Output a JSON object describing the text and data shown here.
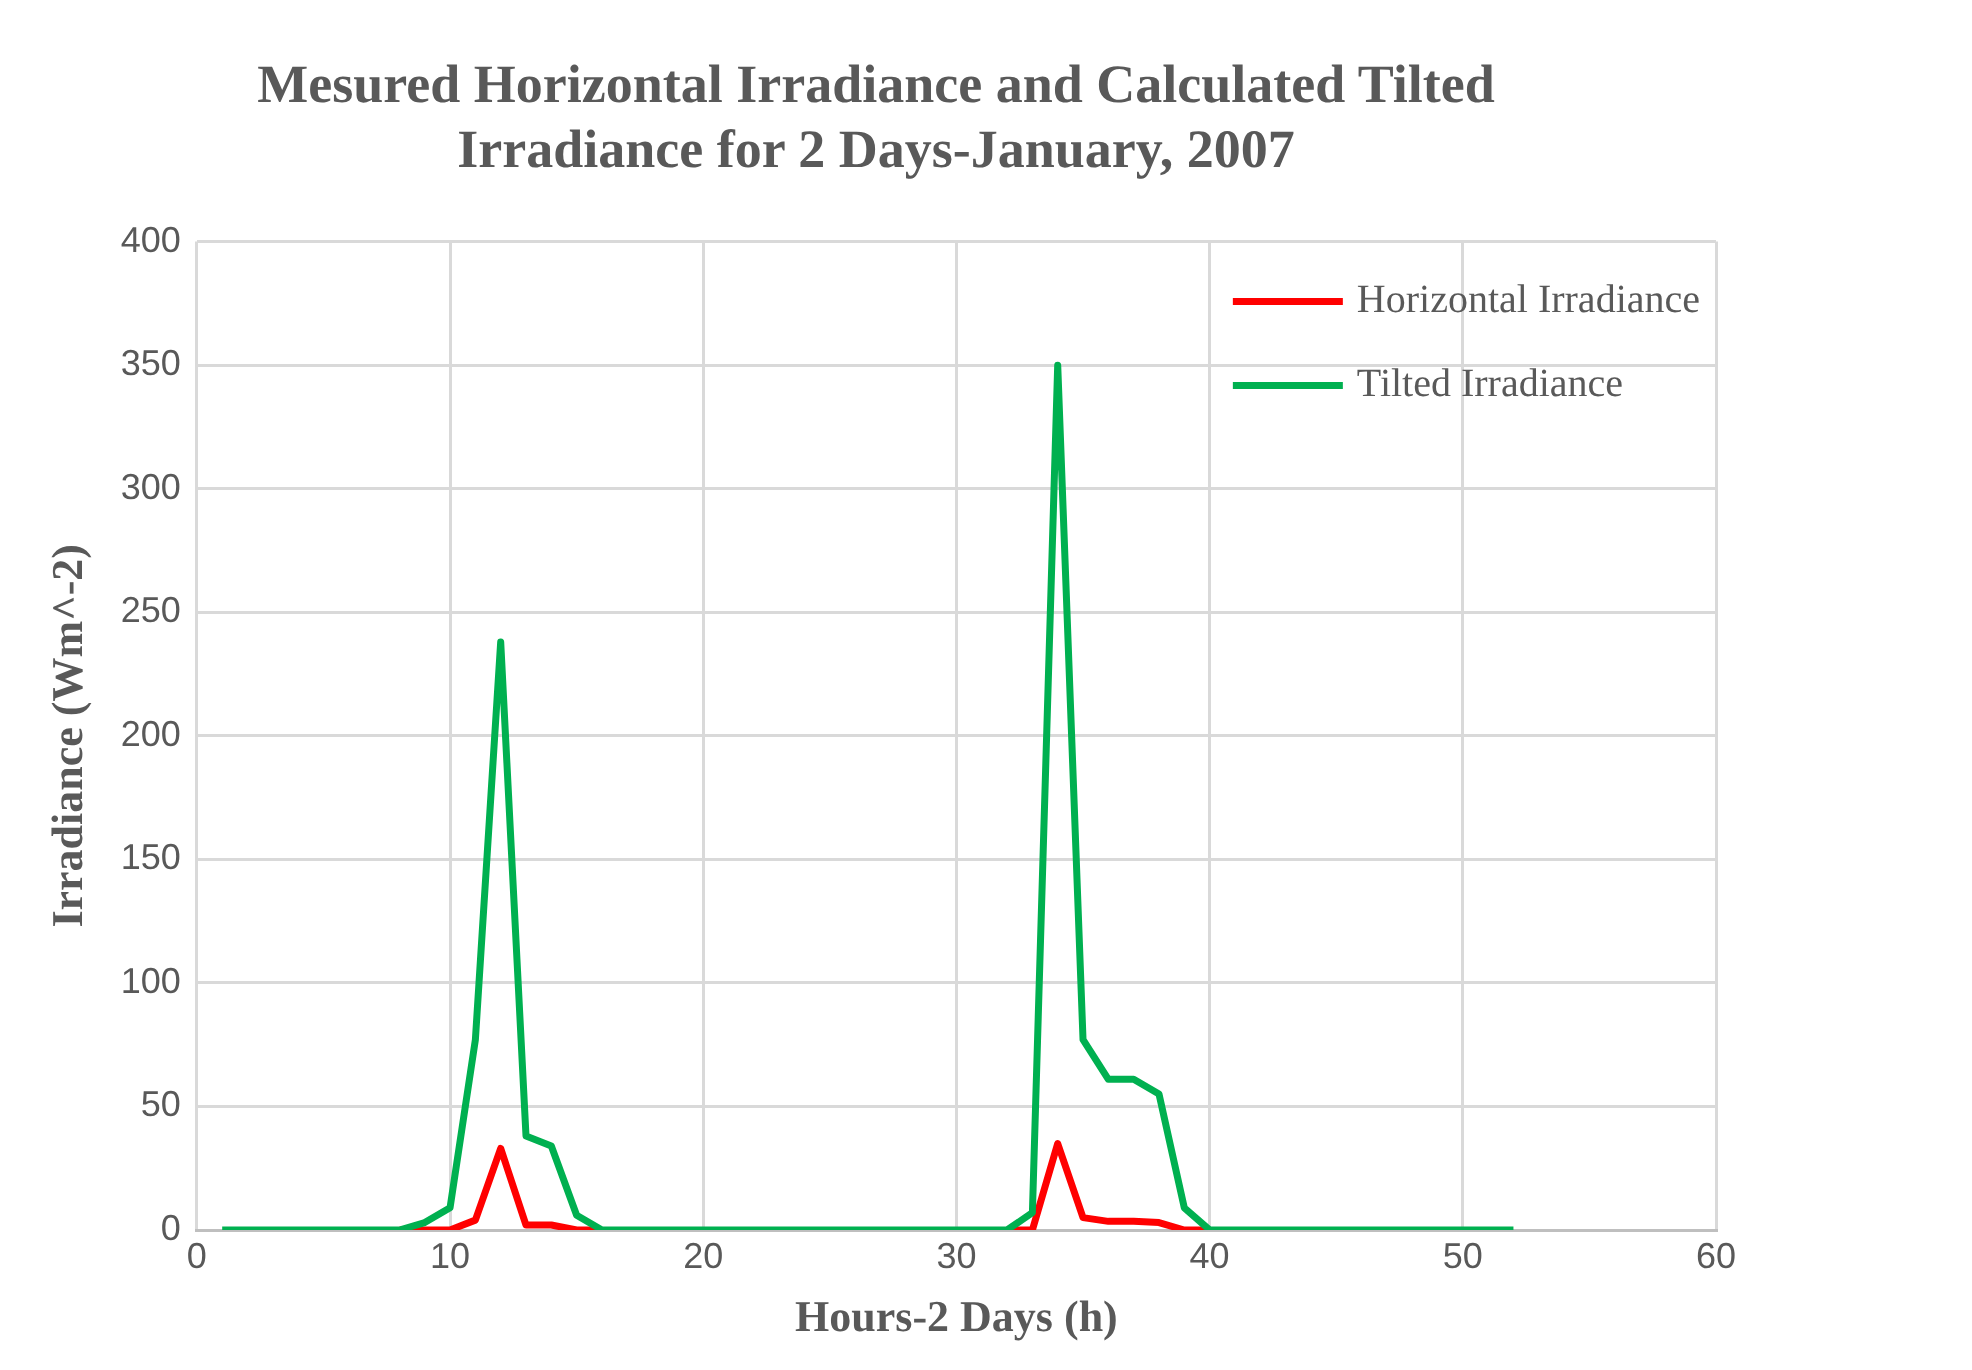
{
  "chart_data": {
    "type": "line",
    "title": "Mesured Horizontal Irradiance and Calculated Tilted Irradiance for 2 Days-January, 2007",
    "xlabel": "Hours-2 Days (h)",
    "ylabel": "Irradiance (Wm^-2)",
    "xlim": [
      0,
      60
    ],
    "xticks": [
      0,
      10,
      20,
      30,
      40,
      50,
      60
    ],
    "ylim": [
      0,
      400
    ],
    "yticks": [
      0,
      50,
      100,
      150,
      200,
      250,
      300,
      350,
      400
    ],
    "grid": true,
    "legend": "top right",
    "marker": "none",
    "line_style": "solid",
    "series": [
      {
        "name": "Horizontal Irradiance",
        "color": "#ff0000",
        "x": [
          8,
          9,
          10,
          11,
          12,
          13,
          14,
          15,
          16,
          17,
          18,
          19,
          20,
          21,
          22,
          23,
          24,
          25,
          26,
          27,
          28,
          29,
          30,
          31,
          32,
          33,
          34,
          35,
          36,
          37,
          38,
          39,
          40
        ],
        "values": [
          0,
          0,
          0,
          4,
          33,
          2,
          2,
          0,
          0,
          null,
          null,
          null,
          null,
          null,
          null,
          null,
          null,
          null,
          null,
          null,
          null,
          null,
          null,
          null,
          0,
          0,
          35,
          5,
          3.5,
          3.5,
          3,
          0,
          0
        ]
      },
      {
        "name": "Tilted Irradiance",
        "color": "#00b050",
        "x": [
          1,
          2,
          3,
          4,
          5,
          6,
          7,
          8,
          9,
          10,
          11,
          12,
          13,
          14,
          15,
          16,
          17,
          18,
          19,
          20,
          21,
          22,
          23,
          24,
          25,
          26,
          27,
          28,
          29,
          30,
          31,
          32,
          33,
          34,
          35,
          36,
          37,
          38,
          39,
          40,
          41,
          42,
          43,
          44,
          45,
          46,
          47,
          48,
          49,
          50,
          51,
          52
        ],
        "values": [
          0,
          0,
          0,
          0,
          0,
          0,
          0,
          0,
          3,
          9,
          77,
          238,
          38,
          34,
          6,
          0,
          0,
          0,
          0,
          0,
          0,
          0,
          0,
          0,
          0,
          0,
          0,
          0,
          0,
          0,
          0,
          0,
          7,
          350,
          77,
          61,
          61,
          55,
          9,
          0,
          0,
          0,
          0,
          0,
          0,
          0,
          0,
          0,
          0,
          0,
          0,
          0
        ]
      }
    ]
  }
}
